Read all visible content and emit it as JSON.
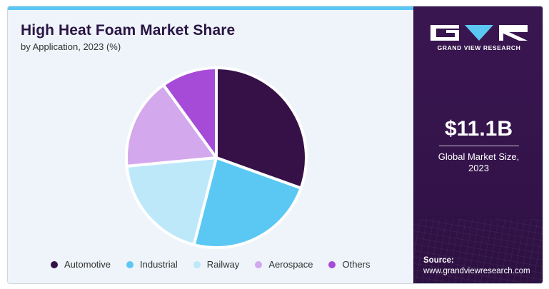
{
  "title": "High Heat Foam Market Share",
  "subtitle": "by Application, 2023 (%)",
  "chart_data": {
    "type": "pie",
    "title": "High Heat Foam Market Share",
    "subtitle": "by Application, 2023 (%)",
    "categories": [
      "Automotive",
      "Industrial",
      "Railway",
      "Aerospace",
      "Others"
    ],
    "values": [
      30.5,
      23.5,
      19.5,
      16.5,
      10.0
    ],
    "colors": [
      "#361148",
      "#5bc8f3",
      "#bde8fa",
      "#d3a8ec",
      "#a64bd8"
    ],
    "legend_position": "bottom",
    "start_angle": "12 o'clock",
    "direction": "clockwise"
  },
  "sidebar": {
    "brand": "GRAND VIEW RESEARCH",
    "market_value": "$11.1B",
    "market_label_line1": "Global Market Size,",
    "market_label_line2": "2023",
    "source_label": "Source:",
    "source_url": "www.grandviewresearch.com"
  }
}
